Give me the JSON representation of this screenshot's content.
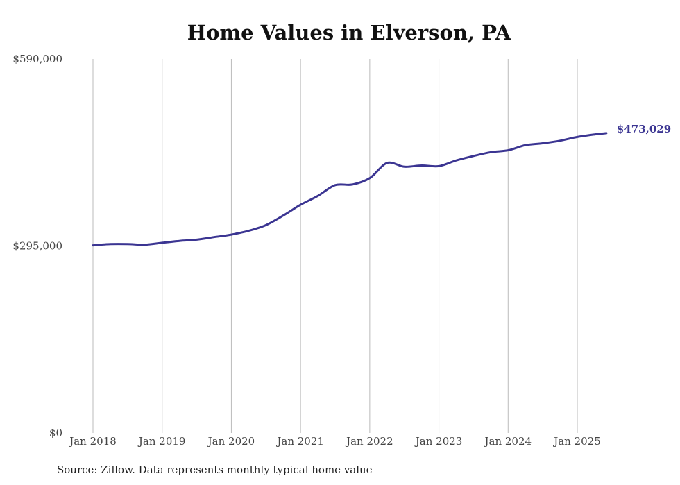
{
  "chart_data": {
    "type": "line",
    "title": "Home Values in Elverson, PA",
    "source": "Source: Zillow. Data represents monthly typical home value",
    "xlabel": "",
    "ylabel": "",
    "ylim": [
      0,
      590000
    ],
    "y_ticks": [
      {
        "value": 0,
        "label": "$0"
      },
      {
        "value": 295000,
        "label": "$295,000"
      },
      {
        "value": 590000,
        "label": "$590,000"
      }
    ],
    "x_ticks": [
      {
        "value": 2018,
        "label": "Jan 2018"
      },
      {
        "value": 2019,
        "label": "Jan 2019"
      },
      {
        "value": 2020,
        "label": "Jan 2020"
      },
      {
        "value": 2021,
        "label": "Jan 2021"
      },
      {
        "value": 2022,
        "label": "Jan 2022"
      },
      {
        "value": 2023,
        "label": "Jan 2023"
      },
      {
        "value": 2024,
        "label": "Jan 2024"
      },
      {
        "value": 2025,
        "label": "Jan 2025"
      }
    ],
    "grid": {
      "vertical": true,
      "horizontal": false
    },
    "line_color": "#3b3592",
    "grid_color": "#bbbbbb",
    "end_label": "$473,029",
    "series": [
      {
        "x": [
          2018.0,
          2018.25,
          2018.5,
          2018.75,
          2019.0,
          2019.25,
          2019.5,
          2019.75,
          2020.0,
          2020.25,
          2020.5,
          2020.75,
          2021.0,
          2021.25,
          2021.5,
          2021.75,
          2022.0,
          2022.25,
          2022.5,
          2022.75,
          2023.0,
          2023.25,
          2023.5,
          2023.75,
          2024.0,
          2024.25,
          2024.5,
          2024.75,
          2025.0,
          2025.25,
          2025.42
        ],
        "values": [
          296000,
          298000,
          298000,
          297000,
          300000,
          303000,
          305000,
          309000,
          313000,
          319000,
          328000,
          343000,
          360000,
          374000,
          391000,
          392000,
          402000,
          426000,
          420000,
          422000,
          421000,
          430000,
          437000,
          443000,
          446000,
          454000,
          457000,
          461000,
          467000,
          471000,
          473029
        ]
      }
    ]
  }
}
